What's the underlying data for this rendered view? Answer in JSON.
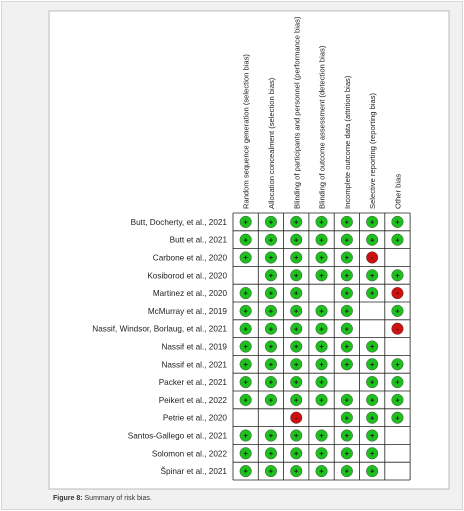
{
  "figure": {
    "columns": [
      "Random sequence generation (selection bias)",
      "Allocation concealment (selection bias)",
      "Blinding of participants and personnel (performance bias)",
      "Blinding of outcome assessment (detection bias)",
      "Incomplete outcome data (attrition bias)",
      "Selective reporting (reporting bias)",
      "Other bias"
    ],
    "rows": [
      {
        "study": "Butt, Docherty, et al., 2021",
        "judgements": [
          "+",
          "+",
          "+",
          "+",
          "+",
          "+",
          "+"
        ]
      },
      {
        "study": "Butt et al., 2021",
        "judgements": [
          "+",
          "+",
          "+",
          "+",
          "+",
          "+",
          "+"
        ]
      },
      {
        "study": "Carbone et al., 2020",
        "judgements": [
          "+",
          "+",
          "+",
          "+",
          "+",
          "-",
          null
        ]
      },
      {
        "study": "Kosiborod et al., 2020",
        "judgements": [
          null,
          "+",
          "+",
          "+",
          "+",
          "+",
          "+"
        ]
      },
      {
        "study": "Martinez et al., 2020",
        "judgements": [
          "+",
          "+",
          "+",
          null,
          "+",
          "+",
          "-"
        ]
      },
      {
        "study": "McMurray et al., 2019",
        "judgements": [
          "+",
          "+",
          "+",
          "+",
          "+",
          null,
          "+"
        ]
      },
      {
        "study": "Nassif, Windsor, Borlaug, et al., 2021",
        "judgements": [
          "+",
          "+",
          "+",
          "+",
          "+",
          null,
          "-"
        ]
      },
      {
        "study": "Nassif et al., 2019",
        "judgements": [
          "+",
          "+",
          "+",
          "+",
          "+",
          "+",
          null
        ]
      },
      {
        "study": "Nassif et al., 2021",
        "judgements": [
          "+",
          "+",
          "+",
          "+",
          "+",
          "+",
          "+"
        ]
      },
      {
        "study": "Packer et al., 2021",
        "judgements": [
          "+",
          "+",
          "+",
          "+",
          null,
          "+",
          "+"
        ]
      },
      {
        "study": "Peikert et al., 2022",
        "judgements": [
          "+",
          "+",
          "+",
          "+",
          "+",
          "+",
          "+"
        ]
      },
      {
        "study": "Petrie et al., 2020",
        "judgements": [
          null,
          null,
          "-",
          null,
          "+",
          "+",
          "+"
        ]
      },
      {
        "study": "Santos-Gallego et al., 2021",
        "judgements": [
          "+",
          "+",
          "+",
          "+",
          "+",
          "+",
          null
        ]
      },
      {
        "study": "Solomon et al., 2022",
        "judgements": [
          "+",
          "+",
          "+",
          "+",
          "+",
          "+",
          null
        ]
      },
      {
        "study": "Špinar et al., 2021",
        "judgements": [
          "+",
          "+",
          "+",
          "+",
          "+",
          "+",
          null
        ]
      }
    ],
    "judgement_colors": {
      "+": "#1fbf1f",
      "-": "#cc1111"
    },
    "caption": {
      "label": "Figure 8:",
      "text": "Summary of risk bias."
    }
  }
}
